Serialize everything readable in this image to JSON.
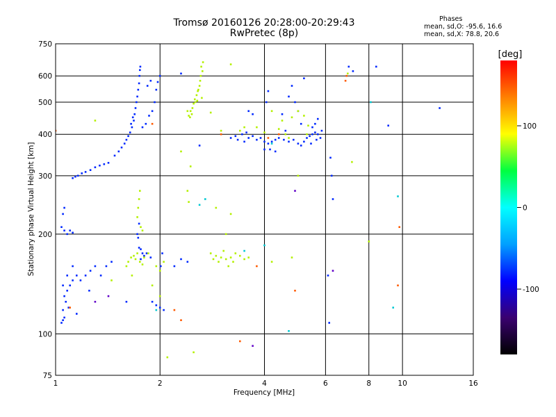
{
  "header": {
    "title": "Tromsø 20160126 20:28:00-20:29:43",
    "subtitle": "RwPretec (8p)",
    "stats_head": "Phases",
    "stats_o": "mean, sd,O: -95.6, 16.6",
    "stats_x": "mean, sd,X:  78.8, 20.6"
  },
  "chart_data": {
    "type": "scatter",
    "title": "Tromsø 20160126 20:28:00-20:29:43",
    "subtitle": "RwPretec (8p)",
    "xlabel": "Frequency [MHz]",
    "ylabel": "Stationary phase Virtual Height [km]",
    "x_scale": "log",
    "y_scale": "log",
    "xlim": [
      1,
      16
    ],
    "ylim": [
      75,
      750
    ],
    "x_ticks": [
      1,
      2,
      4,
      6,
      8,
      10,
      16
    ],
    "y_ticks": [
      75,
      100,
      200,
      300,
      400,
      500,
      600,
      750
    ],
    "grid": true,
    "colorbar": {
      "label": "[deg]",
      "range": [
        -180,
        180
      ],
      "ticks": [
        100,
        0,
        -100
      ],
      "colormap": [
        "#000000",
        "#3a0070",
        "#0000ff",
        "#00a0ff",
        "#00ffff",
        "#00ff40",
        "#ffff00",
        "#ff8000",
        "#ff0000"
      ]
    },
    "stats": {
      "O": {
        "mean": -95.6,
        "sd": 16.6
      },
      "X": {
        "mean": 78.8,
        "sd": 20.6
      }
    },
    "series": [
      {
        "points": [
          [
            1.04,
            108
          ],
          [
            1.05,
            110
          ],
          [
            1.06,
            112
          ],
          [
            1.05,
            118
          ],
          [
            1.07,
            125
          ],
          [
            1.06,
            130
          ],
          [
            1.08,
            135
          ],
          [
            1.1,
            140
          ],
          [
            1.12,
            145
          ],
          [
            1.15,
            150
          ],
          [
            1.05,
            140
          ],
          [
            1.08,
            150
          ],
          [
            1.12,
            160
          ],
          [
            1.18,
            145
          ],
          [
            1.22,
            150
          ],
          [
            1.26,
            155
          ],
          [
            1.3,
            160
          ],
          [
            1.35,
            150
          ],
          [
            1.4,
            160
          ],
          [
            1.45,
            165
          ],
          [
            1.04,
            210
          ],
          [
            1.06,
            205
          ],
          [
            1.08,
            200
          ],
          [
            1.1,
            205
          ],
          [
            1.12,
            202
          ],
          [
            1.05,
            230
          ],
          [
            1.06,
            240
          ],
          [
            1.09,
            120
          ],
          [
            1.15,
            115
          ],
          [
            1.25,
            135
          ],
          [
            1.12,
            295
          ],
          [
            1.14,
            298
          ],
          [
            1.16,
            300
          ],
          [
            1.19,
            305
          ],
          [
            1.22,
            308
          ],
          [
            1.26,
            312
          ],
          [
            1.3,
            318
          ],
          [
            1.34,
            322
          ],
          [
            1.38,
            325
          ],
          [
            1.42,
            328
          ],
          [
            1.48,
            345
          ],
          [
            1.52,
            355
          ],
          [
            1.55,
            365
          ],
          [
            1.58,
            375
          ],
          [
            1.6,
            385
          ],
          [
            1.62,
            395
          ],
          [
            1.64,
            405
          ],
          [
            1.66,
            420
          ],
          [
            1.68,
            440
          ],
          [
            1.69,
            460
          ],
          [
            1.7,
            480
          ],
          [
            1.71,
            500
          ],
          [
            1.72,
            520
          ],
          [
            1.73,
            545
          ],
          [
            1.74,
            570
          ],
          [
            1.745,
            600
          ],
          [
            1.75,
            625
          ],
          [
            1.755,
            640
          ],
          [
            1.65,
            430
          ],
          [
            1.67,
            450
          ],
          [
            1.78,
            420
          ],
          [
            1.82,
            430
          ],
          [
            1.86,
            455
          ],
          [
            1.9,
            470
          ],
          [
            1.93,
            500
          ],
          [
            1.95,
            545
          ],
          [
            1.97,
            575
          ],
          [
            2.0,
            600
          ],
          [
            1.88,
            580
          ],
          [
            1.84,
            560
          ],
          [
            1.74,
            182
          ],
          [
            1.76,
            180
          ],
          [
            1.78,
            175
          ],
          [
            1.8,
            172
          ],
          [
            1.83,
            175
          ],
          [
            1.88,
            170
          ],
          [
            1.72,
            200
          ],
          [
            1.74,
            215
          ],
          [
            1.73,
            195
          ],
          [
            1.76,
            168
          ],
          [
            1.9,
            125
          ],
          [
            1.95,
            122
          ],
          [
            2.0,
            120
          ],
          [
            2.05,
            118
          ],
          [
            2.01,
            160
          ],
          [
            2.03,
            175
          ],
          [
            2.3,
            168
          ],
          [
            2.4,
            165
          ],
          [
            2.2,
            160
          ],
          [
            1.6,
            125
          ],
          [
            3.2,
            390
          ],
          [
            3.35,
            385
          ],
          [
            3.5,
            380
          ],
          [
            3.6,
            390
          ],
          [
            3.7,
            395
          ],
          [
            3.8,
            385
          ],
          [
            3.9,
            390
          ],
          [
            3.3,
            395
          ],
          [
            3.45,
            400
          ],
          [
            3.55,
            405
          ],
          [
            4.0,
            380
          ],
          [
            4.1,
            375
          ],
          [
            4.2,
            380
          ],
          [
            4.3,
            385
          ],
          [
            4.4,
            390
          ],
          [
            4.55,
            385
          ],
          [
            4.7,
            380
          ],
          [
            4.85,
            385
          ],
          [
            5.0,
            375
          ],
          [
            5.1,
            370
          ],
          [
            5.2,
            380
          ],
          [
            5.3,
            390
          ],
          [
            5.4,
            395
          ],
          [
            5.5,
            400
          ],
          [
            5.6,
            405
          ],
          [
            5.7,
            400
          ],
          [
            5.8,
            390
          ],
          [
            5.85,
            410
          ],
          [
            5.65,
            385
          ],
          [
            5.45,
            375
          ],
          [
            4.05,
            500
          ],
          [
            4.1,
            540
          ],
          [
            4.5,
            460
          ],
          [
            4.7,
            520
          ],
          [
            4.8,
            560
          ],
          [
            4.9,
            500
          ],
          [
            5.0,
            470
          ],
          [
            5.1,
            430
          ],
          [
            4.6,
            410
          ],
          [
            5.2,
            590
          ],
          [
            5.6,
            430
          ],
          [
            5.7,
            445
          ],
          [
            5.5,
            420
          ],
          [
            3.6,
            470
          ],
          [
            3.7,
            460
          ],
          [
            4.0,
            360
          ],
          [
            4.15,
            360
          ],
          [
            4.3,
            355
          ],
          [
            2.6,
            370
          ],
          [
            2.3,
            610
          ],
          [
            6.2,
            340
          ],
          [
            6.25,
            300
          ],
          [
            6.3,
            255
          ],
          [
            6.1,
            150
          ],
          [
            6.15,
            108
          ],
          [
            7.0,
            640
          ],
          [
            7.2,
            620
          ],
          [
            8.4,
            640
          ],
          [
            9.1,
            425
          ],
          [
            12.8,
            480
          ]
        ],
        "color": "#0028ff"
      },
      {
        "points": [
          [
            1.6,
            160
          ],
          [
            1.62,
            165
          ],
          [
            1.65,
            170
          ],
          [
            1.68,
            172
          ],
          [
            1.7,
            168
          ],
          [
            1.72,
            175
          ],
          [
            1.75,
            165
          ],
          [
            1.78,
            162
          ],
          [
            1.8,
            170
          ],
          [
            1.85,
            175
          ],
          [
            1.73,
            240
          ],
          [
            1.74,
            255
          ],
          [
            1.75,
            270
          ],
          [
            1.72,
            225
          ],
          [
            1.76,
            210
          ],
          [
            1.78,
            205
          ],
          [
            1.95,
            160
          ],
          [
            2.0,
            155
          ],
          [
            2.05,
            165
          ],
          [
            1.66,
            150
          ],
          [
            2.42,
            455
          ],
          [
            2.45,
            470
          ],
          [
            2.48,
            480
          ],
          [
            2.5,
            495
          ],
          [
            2.52,
            510
          ],
          [
            2.55,
            525
          ],
          [
            2.58,
            545
          ],
          [
            2.6,
            560
          ],
          [
            2.62,
            600
          ],
          [
            2.65,
            620
          ],
          [
            2.47,
            460
          ],
          [
            2.53,
            500
          ],
          [
            2.57,
            540
          ],
          [
            2.61,
            580
          ],
          [
            2.63,
            640
          ],
          [
            2.66,
            660
          ],
          [
            2.44,
            450
          ],
          [
            2.4,
            470
          ],
          [
            2.56,
            505
          ],
          [
            2.64,
            515
          ],
          [
            2.8,
            175
          ],
          [
            2.9,
            172
          ],
          [
            3.0,
            170
          ],
          [
            3.1,
            168
          ],
          [
            3.2,
            170
          ],
          [
            3.3,
            175
          ],
          [
            3.4,
            172
          ],
          [
            3.5,
            168
          ],
          [
            3.6,
            170
          ],
          [
            2.85,
            168
          ],
          [
            2.95,
            165
          ],
          [
            3.05,
            178
          ],
          [
            3.15,
            160
          ],
          [
            3.25,
            165
          ],
          [
            2.4,
            270
          ],
          [
            2.42,
            250
          ],
          [
            2.9,
            240
          ],
          [
            3.2,
            230
          ],
          [
            3.1,
            200
          ],
          [
            3.0,
            410
          ],
          [
            3.5,
            420
          ],
          [
            4.5,
            440
          ],
          [
            4.8,
            450
          ],
          [
            5.0,
            470
          ],
          [
            4.2,
            470
          ],
          [
            4.0,
            405
          ],
          [
            4.6,
            400
          ],
          [
            5.3,
            400
          ],
          [
            4.4,
            415
          ],
          [
            5.0,
            300
          ],
          [
            3.4,
            410
          ],
          [
            3.8,
            420
          ],
          [
            4.7,
            390
          ],
          [
            5.2,
            455
          ],
          [
            5.35,
            425
          ],
          [
            4.2,
            165
          ],
          [
            4.8,
            170
          ],
          [
            1.9,
            140
          ],
          [
            2.0,
            130
          ],
          [
            1.45,
            145
          ],
          [
            2.5,
            88
          ],
          [
            2.1,
            85
          ],
          [
            7.15,
            330
          ],
          [
            6.95,
            610
          ],
          [
            8.0,
            190
          ],
          [
            1.3,
            440
          ],
          [
            2.8,
            465
          ],
          [
            2.3,
            355
          ],
          [
            2.45,
            320
          ],
          [
            3.2,
            650
          ]
        ],
        "color": "#b4f000"
      },
      {
        "points": [
          [
            3.4,
            95
          ],
          [
            2.2,
            118
          ],
          [
            4.9,
            135
          ],
          [
            6.9,
            600
          ],
          [
            6.85,
            580
          ],
          [
            9.8,
            210
          ],
          [
            9.7,
            140
          ],
          [
            3.8,
            160
          ],
          [
            2.3,
            110
          ],
          [
            3.0,
            400
          ],
          [
            4.1,
            390
          ],
          [
            1.0,
            410
          ],
          [
            1.9,
            430
          ],
          [
            1.1,
            120
          ],
          [
            4.4,
            400
          ]
        ],
        "color": "#ff5a00"
      },
      {
        "points": [
          [
            2.6,
            245
          ],
          [
            3.5,
            178
          ],
          [
            4.0,
            185
          ],
          [
            4.7,
            102
          ],
          [
            8.1,
            500
          ],
          [
            9.7,
            260
          ],
          [
            9.4,
            120
          ],
          [
            1.95,
            118
          ],
          [
            2.7,
            255
          ],
          [
            4.2,
            375
          ]
        ],
        "color": "#00c8d2"
      },
      {
        "points": [
          [
            3.7,
            92
          ],
          [
            1.42,
            130
          ],
          [
            1.3,
            125
          ],
          [
            4.9,
            270
          ],
          [
            6.3,
            155
          ]
        ],
        "color": "#6000c8"
      }
    ]
  }
}
